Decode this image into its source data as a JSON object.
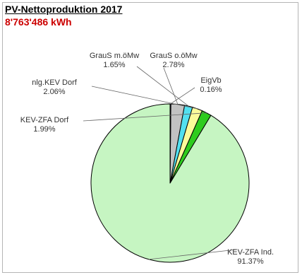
{
  "chart_data": {
    "type": "pie",
    "title": "PV-Nettoproduktion 2017",
    "subtitle": "8'763'486 kWh",
    "subtitle_color": "#cc0000",
    "slices": [
      {
        "label": "KEV-ZFA Ind.",
        "value": 91.37,
        "value_label": "91.37%",
        "color": "#c6f5c2"
      },
      {
        "label": "KEV-ZFA Dorf",
        "value": 1.99,
        "value_label": "1.99%",
        "color": "#2ecc1e"
      },
      {
        "label": "nlg.KEV Dorf",
        "value": 2.06,
        "value_label": "2.06%",
        "color": "#fbfb9a"
      },
      {
        "label": "GrauS m.öMw",
        "value": 1.65,
        "value_label": "1.65%",
        "color": "#52e0f0"
      },
      {
        "label": "GrauS o.öMw",
        "value": 2.78,
        "value_label": "2.78%",
        "color": "#c2c2c2"
      },
      {
        "label": "EigVb",
        "value": 0.16,
        "value_label": "0.16%",
        "color": "#3a3a8a"
      }
    ],
    "start": "12 o'clock",
    "direction": "counterclockwise",
    "legend": "none",
    "labels": "outside with leader lines"
  }
}
